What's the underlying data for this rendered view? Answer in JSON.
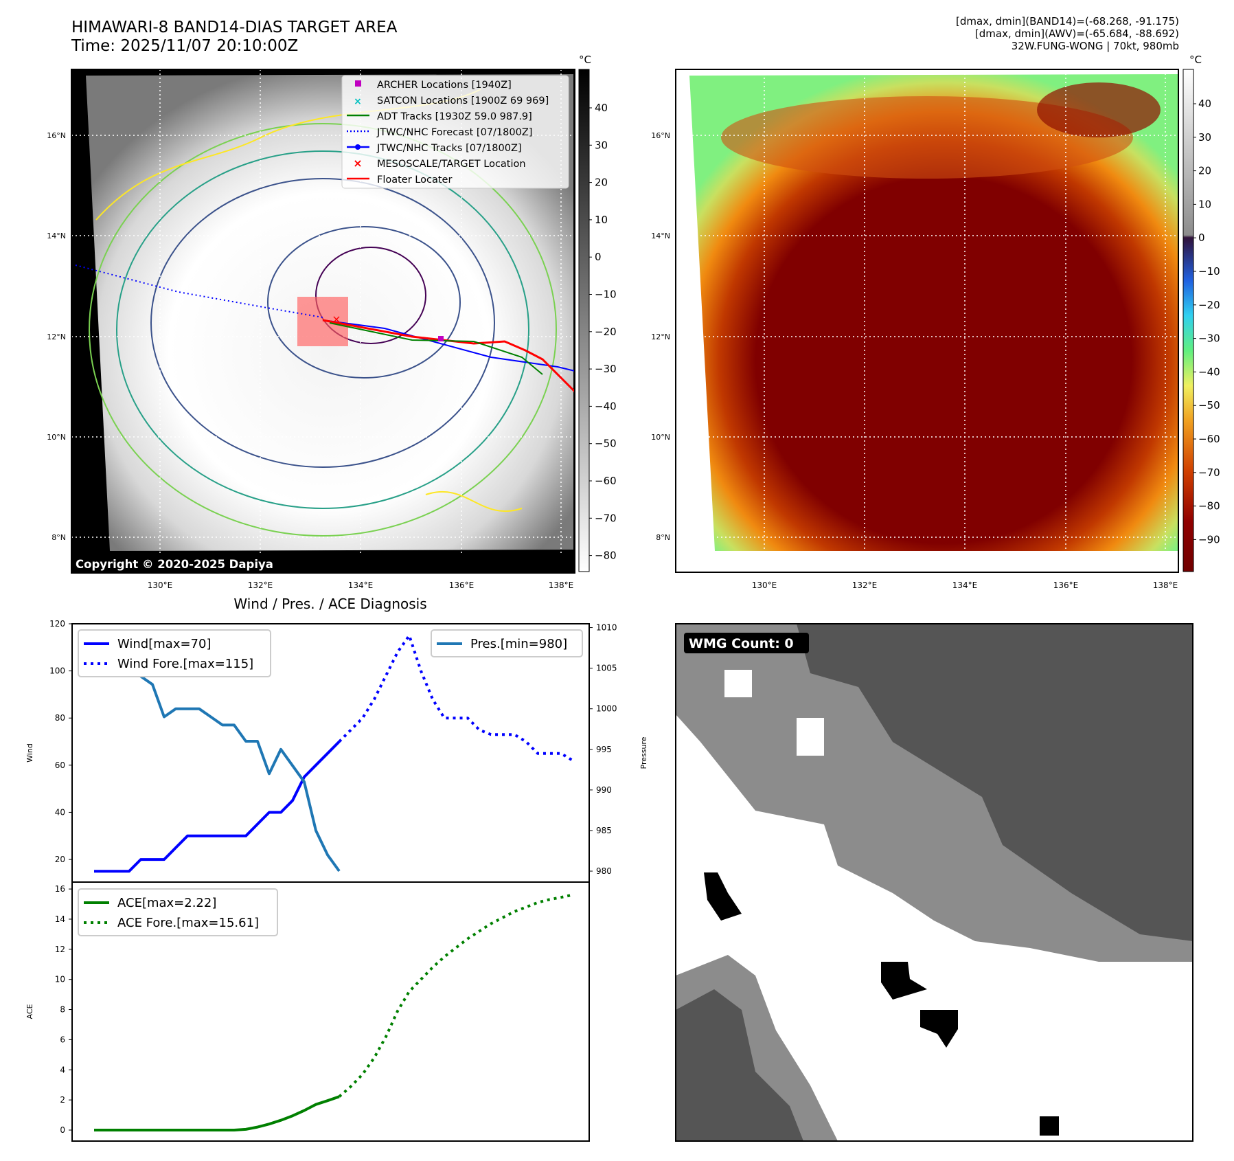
{
  "header": {
    "title": "HIMAWARI-8 BAND14-DIAS TARGET AREA",
    "time": "Time: 2025/11/07 20:10:00Z",
    "info_band14": "[dmax, dmin](BAND14)=(-68.268, -91.175)",
    "info_awv": "[dmax, dmin](AWV)=(-65.684, -88.692)",
    "storm": "32W.FUNG-WONG | 70kt, 980mb"
  },
  "map_left": {
    "copyright": "Copyright © 2020-2025 Dapiya",
    "lat_labels": [
      "16°N",
      "14°N",
      "12°N",
      "10°N",
      "8°N"
    ],
    "lon_labels": [
      "130°E",
      "132°E",
      "134°E",
      "136°E",
      "138°E"
    ],
    "legend": [
      {
        "label": "ARCHER Locations [1940Z]",
        "color": "#c000c0",
        "icon": "square-marker-icon"
      },
      {
        "label": "SATCON Locations [1900Z 69 969]",
        "color": "#00c0c0",
        "icon": "x-marker-icon"
      },
      {
        "label": "ADT Tracks [1930Z 59.0 987.9]",
        "color": "#008000",
        "icon": "line-icon"
      },
      {
        "label": "JTWC/NHC Forecast [07/1800Z]",
        "color": "#0000ff",
        "icon": "dotted-line-icon"
      },
      {
        "label": "JTWC/NHC Tracks [07/1800Z]",
        "color": "#0000ff",
        "icon": "line-dot-icon"
      },
      {
        "label": "MESOSCALE/TARGET Location",
        "color": "#ff0000",
        "icon": "x-marker-icon"
      },
      {
        "label": "Floater Locater",
        "color": "#ff0000",
        "icon": "line-icon"
      }
    ],
    "colorbar": {
      "unit": "°C",
      "ticks": [
        "40",
        "30",
        "20",
        "10",
        "0",
        "−10",
        "−20",
        "−30",
        "−40",
        "−50",
        "−60",
        "−70",
        "−80"
      ]
    }
  },
  "map_right": {
    "lat_labels": [
      "16°N",
      "14°N",
      "12°N",
      "10°N",
      "8°N"
    ],
    "lon_labels": [
      "130°E",
      "132°E",
      "134°E",
      "136°E",
      "138°E"
    ],
    "colorbar": {
      "unit": "°C",
      "ticks": [
        "40",
        "30",
        "20",
        "10",
        "0",
        "−10",
        "−20",
        "−30",
        "−40",
        "−50",
        "−60",
        "−70",
        "−80",
        "−90"
      ]
    }
  },
  "wmg": {
    "label": "WMG Count: 0"
  },
  "chart_data": [
    {
      "type": "line",
      "title": "Wind / Pres. / ACE Diagnosis",
      "ylabel": "Wind",
      "ylabel_right": "Pressure",
      "ylim": [
        10.4,
        120
      ],
      "ylim_right": [
        978.65,
        1010.47
      ],
      "yticks": [
        "20",
        "40",
        "60",
        "80",
        "100",
        "120"
      ],
      "yticks_right": [
        "980",
        "985",
        "990",
        "995",
        "1000",
        "1005",
        "1010"
      ],
      "series": [
        {
          "name": "Wind[max=70]",
          "style": "solid",
          "color": "#0000ff",
          "start": 0,
          "values": [
            15,
            15,
            15,
            15,
            20,
            20,
            20,
            25,
            30,
            30,
            30,
            30,
            30,
            30,
            35,
            40,
            40,
            45,
            55,
            60,
            65,
            70
          ]
        },
        {
          "name": "Wind Fore.[max=115]",
          "style": "dotted",
          "color": "#0000ff",
          "start": 21,
          "values": [
            70,
            75,
            80,
            88,
            98,
            108,
            115,
            100,
            88,
            80,
            80,
            80,
            75,
            73,
            73,
            73,
            70,
            65,
            65,
            65,
            62
          ]
        },
        {
          "name": "Pres.[min=980]",
          "style": "solid",
          "color": "#1f77b4",
          "start": 0,
          "axis": "right",
          "values": [
            1009,
            1005,
            1005,
            1005,
            1004,
            1003,
            999,
            1000,
            1000,
            1000,
            999,
            998,
            998,
            996,
            996,
            992,
            995,
            993,
            991,
            985,
            982,
            980
          ]
        }
      ]
    },
    {
      "type": "line",
      "ylabel": "ACE",
      "ylim": [
        -0.73,
        16.46
      ],
      "yticks": [
        "0",
        "2",
        "4",
        "6",
        "8",
        "10",
        "12",
        "14",
        "16"
      ],
      "series": [
        {
          "name": "ACE[max=2.22]",
          "style": "solid",
          "color": "#008000",
          "start": 0,
          "values": [
            0,
            0,
            0,
            0,
            0,
            0,
            0,
            0,
            0,
            0,
            0,
            0,
            0,
            0.05,
            0.2,
            0.4,
            0.65,
            0.95,
            1.3,
            1.7,
            1.95,
            2.22
          ]
        },
        {
          "name": "ACE Fore.[max=15.61]",
          "style": "dotted",
          "color": "#008000",
          "start": 21,
          "values": [
            2.22,
            2.9,
            3.7,
            4.8,
            6.2,
            7.9,
            9.2,
            10.0,
            10.8,
            11.5,
            12.1,
            12.7,
            13.2,
            13.7,
            14.1,
            14.5,
            14.8,
            15.1,
            15.3,
            15.45,
            15.61
          ]
        }
      ]
    }
  ]
}
